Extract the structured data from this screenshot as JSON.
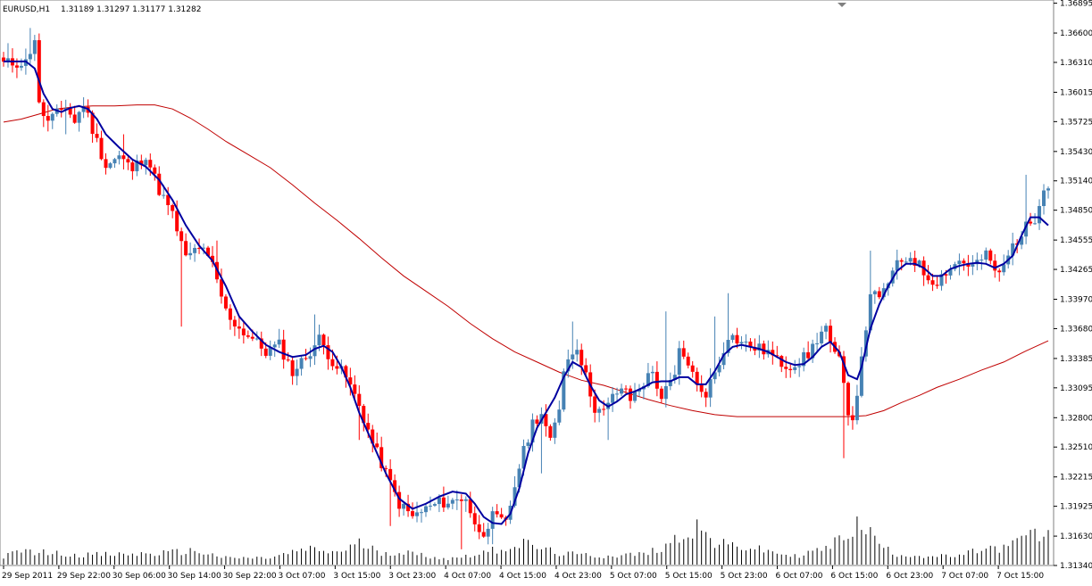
{
  "header": {
    "symbol": "EURUSD,H1",
    "ohlc": "1.31189 1.31297 1.31177 1.31282"
  },
  "colors": {
    "bull": "#4682B4",
    "bear": "#FF0000",
    "fast_ma": "#0000A0",
    "slow_ma": "#C00000",
    "volume": "#000000",
    "frame": "#808080",
    "marker": "#808080"
  },
  "chart_data": {
    "type": "candlestick",
    "timeframe": "H1",
    "ylim": [
      1.3134,
      1.369
    ],
    "y_ticks": [
      1.36895,
      1.366,
      1.3631,
      1.36015,
      1.35725,
      1.3543,
      1.3514,
      1.3485,
      1.34555,
      1.34265,
      1.3397,
      1.3368,
      1.33385,
      1.33095,
      1.328,
      1.3251,
      1.32215,
      1.31925,
      1.3163,
      1.3134
    ],
    "x_labels": [
      "29 Sep 2011",
      "29 Sep 22:00",
      "30 Sep 06:00",
      "30 Sep 14:00",
      "30 Sep 22:00",
      "3 Oct 07:00",
      "3 Oct 15:00",
      "3 Oct 23:00",
      "4 Oct 07:00",
      "4 Oct 15:00",
      "4 Oct 23:00",
      "5 Oct 07:00",
      "5 Oct 15:00",
      "5 Oct 23:00",
      "6 Oct 07:00",
      "6 Oct 15:00",
      "6 Oct 23:00",
      "7 Oct 07:00",
      "7 Oct 15:00"
    ],
    "close_path": [
      [
        0,
        1.363
      ],
      [
        5,
        1.3631
      ],
      [
        7,
        1.3655
      ],
      [
        8,
        1.3588
      ],
      [
        10,
        1.3572
      ],
      [
        14,
        1.3588
      ],
      [
        16,
        1.3572
      ],
      [
        18,
        1.359
      ],
      [
        20,
        1.3565
      ],
      [
        23,
        1.3529
      ],
      [
        26,
        1.3538
      ],
      [
        29,
        1.3525
      ],
      [
        32,
        1.354
      ],
      [
        35,
        1.3505
      ],
      [
        38,
        1.348
      ],
      [
        41,
        1.3437
      ],
      [
        44,
        1.345
      ],
      [
        47,
        1.343
      ],
      [
        50,
        1.3385
      ],
      [
        53,
        1.3368
      ],
      [
        56,
        1.3358
      ],
      [
        59,
        1.3345
      ],
      [
        62,
        1.3352
      ],
      [
        65,
        1.3325
      ],
      [
        68,
        1.334
      ],
      [
        71,
        1.3358
      ],
      [
        74,
        1.3336
      ],
      [
        77,
        1.332
      ],
      [
        80,
        1.3292
      ],
      [
        83,
        1.3255
      ],
      [
        86,
        1.3225
      ],
      [
        89,
        1.3195
      ],
      [
        92,
        1.3182
      ],
      [
        95,
        1.319
      ],
      [
        98,
        1.3196
      ],
      [
        101,
        1.3197
      ],
      [
        104,
        1.3202
      ],
      [
        106,
        1.3172
      ],
      [
        108,
        1.3168
      ],
      [
        110,
        1.3182
      ],
      [
        113,
        1.3175
      ],
      [
        116,
        1.3232
      ],
      [
        119,
        1.3275
      ],
      [
        121,
        1.3285
      ],
      [
        123,
        1.3255
      ],
      [
        125,
        1.329
      ],
      [
        126,
        1.333
      ],
      [
        128,
        1.3345
      ],
      [
        129,
        1.3352
      ],
      [
        131,
        1.332
      ],
      [
        133,
        1.329
      ],
      [
        135,
        1.3285
      ],
      [
        137,
        1.33
      ],
      [
        139,
        1.331
      ],
      [
        141,
        1.3298
      ],
      [
        143,
        1.331
      ],
      [
        146,
        1.3325
      ],
      [
        148,
        1.33
      ],
      [
        151,
        1.332
      ],
      [
        152,
        1.3345
      ],
      [
        154,
        1.3335
      ],
      [
        156,
        1.331
      ],
      [
        158,
        1.3305
      ],
      [
        161,
        1.3335
      ],
      [
        163,
        1.3362
      ],
      [
        165,
        1.3357
      ],
      [
        167,
        1.3352
      ],
      [
        170,
        1.3348
      ],
      [
        172,
        1.3345
      ],
      [
        174,
        1.3336
      ],
      [
        176,
        1.3332
      ],
      [
        178,
        1.3333
      ],
      [
        181,
        1.3342
      ],
      [
        183,
        1.3358
      ],
      [
        185,
        1.337
      ],
      [
        186,
        1.335
      ],
      [
        188,
        1.3335
      ],
      [
        190,
        1.3288
      ],
      [
        191,
        1.3279
      ],
      [
        193,
        1.3335
      ],
      [
        195,
        1.3405
      ],
      [
        197,
        1.3395
      ],
      [
        199,
        1.3415
      ],
      [
        201,
        1.343
      ],
      [
        204,
        1.344
      ],
      [
        206,
        1.343
      ],
      [
        208,
        1.3418
      ],
      [
        210,
        1.3415
      ],
      [
        212,
        1.3425
      ],
      [
        215,
        1.3435
      ],
      [
        218,
        1.343
      ],
      [
        221,
        1.344
      ],
      [
        224,
        1.342
      ],
      [
        227,
        1.345
      ],
      [
        230,
        1.3468
      ],
      [
        232,
        1.3478
      ],
      [
        234,
        1.351
      ]
    ],
    "spikes": [
      [
        1,
        1.365
      ],
      [
        6,
        1.3665
      ],
      [
        14,
        1.356
      ],
      [
        27,
        1.356
      ],
      [
        40,
        1.337
      ],
      [
        48,
        1.3455
      ],
      [
        55,
        1.3365
      ],
      [
        70,
        1.3382
      ],
      [
        80,
        1.3258
      ],
      [
        87,
        1.3173
      ],
      [
        103,
        1.315
      ],
      [
        110,
        1.3155
      ],
      [
        121,
        1.3225
      ],
      [
        128,
        1.3375
      ],
      [
        136,
        1.3258
      ],
      [
        149,
        1.3385
      ],
      [
        160,
        1.338
      ],
      [
        163,
        1.3403
      ],
      [
        189,
        1.324
      ],
      [
        195,
        1.3445
      ],
      [
        230,
        1.352
      ]
    ],
    "fast_ma": [
      [
        0,
        1.3632
      ],
      [
        3,
        1.3632
      ],
      [
        5,
        1.3632
      ],
      [
        7,
        1.3625
      ],
      [
        9,
        1.36
      ],
      [
        11,
        1.3585
      ],
      [
        13,
        1.3582
      ],
      [
        15,
        1.3586
      ],
      [
        17,
        1.3588
      ],
      [
        19,
        1.3585
      ],
      [
        21,
        1.3575
      ],
      [
        23,
        1.356
      ],
      [
        26,
        1.3547
      ],
      [
        29,
        1.3535
      ],
      [
        32,
        1.3528
      ],
      [
        35,
        1.3515
      ],
      [
        38,
        1.3495
      ],
      [
        41,
        1.347
      ],
      [
        44,
        1.345
      ],
      [
        47,
        1.3435
      ],
      [
        50,
        1.341
      ],
      [
        53,
        1.338
      ],
      [
        56,
        1.3365
      ],
      [
        59,
        1.3352
      ],
      [
        62,
        1.3345
      ],
      [
        65,
        1.334
      ],
      [
        68,
        1.3342
      ],
      [
        70,
        1.3348
      ],
      [
        72,
        1.3351
      ],
      [
        74,
        1.3345
      ],
      [
        76,
        1.333
      ],
      [
        78,
        1.331
      ],
      [
        80,
        1.3285
      ],
      [
        83,
        1.3255
      ],
      [
        86,
        1.3225
      ],
      [
        89,
        1.32
      ],
      [
        92,
        1.319
      ],
      [
        95,
        1.3195
      ],
      [
        98,
        1.3202
      ],
      [
        101,
        1.3207
      ],
      [
        104,
        1.3205
      ],
      [
        106,
        1.3195
      ],
      [
        108,
        1.3182
      ],
      [
        110,
        1.3176
      ],
      [
        112,
        1.3175
      ],
      [
        114,
        1.3185
      ],
      [
        116,
        1.321
      ],
      [
        118,
        1.3245
      ],
      [
        120,
        1.327
      ],
      [
        122,
        1.3285
      ],
      [
        124,
        1.33
      ],
      [
        126,
        1.332
      ],
      [
        128,
        1.3335
      ],
      [
        130,
        1.333
      ],
      [
        132,
        1.3312
      ],
      [
        134,
        1.3297
      ],
      [
        136,
        1.3291
      ],
      [
        138,
        1.3296
      ],
      [
        140,
        1.3303
      ],
      [
        142,
        1.3306
      ],
      [
        144,
        1.331
      ],
      [
        146,
        1.3315
      ],
      [
        148,
        1.3316
      ],
      [
        150,
        1.3316
      ],
      [
        152,
        1.332
      ],
      [
        154,
        1.332
      ],
      [
        156,
        1.3313
      ],
      [
        158,
        1.3313
      ],
      [
        160,
        1.3326
      ],
      [
        162,
        1.3342
      ],
      [
        164,
        1.335
      ],
      [
        166,
        1.3352
      ],
      [
        168,
        1.335
      ],
      [
        170,
        1.3348
      ],
      [
        172,
        1.3345
      ],
      [
        174,
        1.334
      ],
      [
        176,
        1.3335
      ],
      [
        178,
        1.3332
      ],
      [
        180,
        1.3333
      ],
      [
        182,
        1.334
      ],
      [
        184,
        1.335
      ],
      [
        186,
        1.3355
      ],
      [
        188,
        1.3345
      ],
      [
        190,
        1.3322
      ],
      [
        192,
        1.3318
      ],
      [
        193,
        1.333
      ],
      [
        195,
        1.3368
      ],
      [
        197,
        1.3392
      ],
      [
        199,
        1.341
      ],
      [
        201,
        1.3425
      ],
      [
        203,
        1.3432
      ],
      [
        205,
        1.3432
      ],
      [
        207,
        1.3428
      ],
      [
        209,
        1.342
      ],
      [
        211,
        1.342
      ],
      [
        213,
        1.3427
      ],
      [
        215,
        1.343
      ],
      [
        217,
        1.3432
      ],
      [
        219,
        1.3433
      ],
      [
        221,
        1.3432
      ],
      [
        223,
        1.3428
      ],
      [
        225,
        1.3432
      ],
      [
        227,
        1.344
      ],
      [
        229,
        1.346
      ],
      [
        231,
        1.3478
      ],
      [
        233,
        1.3478
      ],
      [
        235,
        1.347
      ]
    ],
    "slow_ma": [
      [
        0,
        1.3572
      ],
      [
        4,
        1.3575
      ],
      [
        8,
        1.358
      ],
      [
        12,
        1.3585
      ],
      [
        16,
        1.3587
      ],
      [
        20,
        1.3588
      ],
      [
        25,
        1.3588
      ],
      [
        30,
        1.3589
      ],
      [
        34,
        1.3589
      ],
      [
        38,
        1.3585
      ],
      [
        42,
        1.3576
      ],
      [
        46,
        1.3565
      ],
      [
        50,
        1.3553
      ],
      [
        55,
        1.354
      ],
      [
        60,
        1.3527
      ],
      [
        65,
        1.351
      ],
      [
        70,
        1.3492
      ],
      [
        75,
        1.3475
      ],
      [
        80,
        1.3457
      ],
      [
        85,
        1.3438
      ],
      [
        90,
        1.342
      ],
      [
        95,
        1.3405
      ],
      [
        100,
        1.339
      ],
      [
        105,
        1.3373
      ],
      [
        110,
        1.3358
      ],
      [
        115,
        1.3345
      ],
      [
        120,
        1.3335
      ],
      [
        125,
        1.3325
      ],
      [
        130,
        1.3317
      ],
      [
        135,
        1.3312
      ],
      [
        140,
        1.3305
      ],
      [
        145,
        1.3298
      ],
      [
        150,
        1.3292
      ],
      [
        155,
        1.3287
      ],
      [
        160,
        1.3283
      ],
      [
        165,
        1.3281
      ],
      [
        170,
        1.3281
      ],
      [
        175,
        1.3281
      ],
      [
        180,
        1.3281
      ],
      [
        185,
        1.3281
      ],
      [
        190,
        1.3281
      ],
      [
        194,
        1.3282
      ],
      [
        198,
        1.3287
      ],
      [
        202,
        1.3295
      ],
      [
        206,
        1.3302
      ],
      [
        210,
        1.331
      ],
      [
        215,
        1.3318
      ],
      [
        220,
        1.3327
      ],
      [
        225,
        1.3335
      ],
      [
        230,
        1.3346
      ],
      [
        235,
        1.3356
      ]
    ],
    "volume_peaks": [
      [
        0,
        0.15
      ],
      [
        5,
        0.25
      ],
      [
        15,
        0.18
      ],
      [
        25,
        0.18
      ],
      [
        35,
        0.2
      ],
      [
        43,
        0.25
      ],
      [
        50,
        0.12
      ],
      [
        60,
        0.12
      ],
      [
        68,
        0.28
      ],
      [
        75,
        0.22
      ],
      [
        80,
        0.38
      ],
      [
        85,
        0.22
      ],
      [
        90,
        0.22
      ],
      [
        100,
        0.1
      ],
      [
        108,
        0.22
      ],
      [
        117,
        0.38
      ],
      [
        125,
        0.2
      ],
      [
        135,
        0.15
      ],
      [
        145,
        0.2
      ],
      [
        150,
        0.4
      ],
      [
        156,
        0.7
      ],
      [
        160,
        0.38
      ],
      [
        168,
        0.3
      ],
      [
        178,
        0.15
      ],
      [
        186,
        0.32
      ],
      [
        190,
        0.6
      ],
      [
        193,
        0.75
      ],
      [
        197,
        0.38
      ],
      [
        200,
        0.2
      ],
      [
        208,
        0.15
      ],
      [
        215,
        0.15
      ],
      [
        220,
        0.28
      ],
      [
        226,
        0.3
      ],
      [
        230,
        0.55
      ],
      [
        235,
        0.5
      ]
    ],
    "grid": false,
    "legend": "none"
  }
}
